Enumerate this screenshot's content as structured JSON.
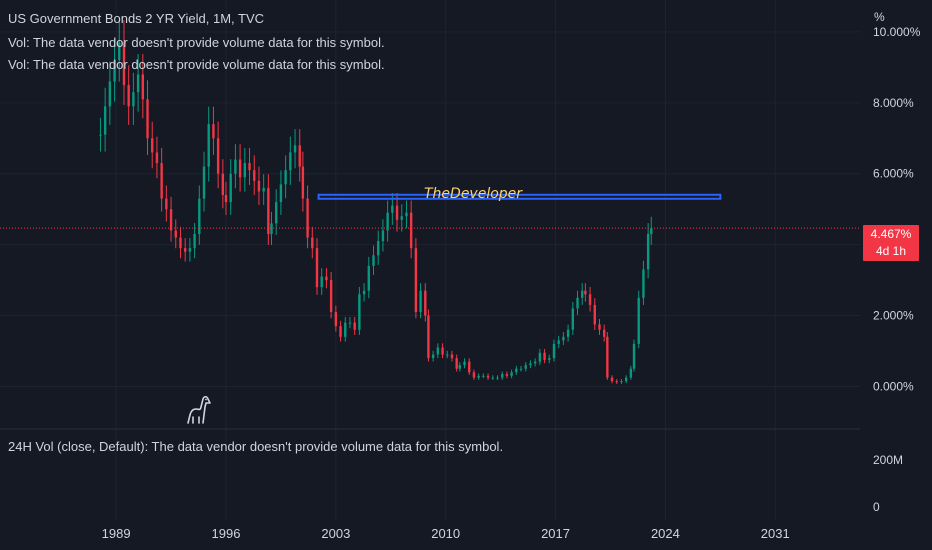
{
  "header": {
    "title": "US Government Bonds 2 YR Yield, 1M, TVC",
    "vol_line_1": "Vol: The data vendor doesn't provide volume data for this symbol.",
    "vol_line_2": "Vol: The data vendor doesn't provide volume data for this symbol."
  },
  "lower_pane": {
    "legend": "24H Vol (close, Default): The data vendor doesn't provide volume data for this symbol.",
    "ticks": [
      "200M",
      "0"
    ]
  },
  "price_axis": {
    "unit": "%",
    "ticks": [
      "10.000%",
      "8.000%",
      "6.000%",
      "2.000%",
      "0.000%"
    ]
  },
  "last_price": {
    "value": "4.467%",
    "countdown": "4d 1h"
  },
  "annotation": {
    "text": "TheDeveloper",
    "level": 5.35,
    "x_start": 2001.9,
    "x_end": 2027.5,
    "color": "#2962ff"
  },
  "colors": {
    "background": "#151924",
    "up": "#089981",
    "down": "#f23645",
    "grid": "#1f2330",
    "text": "#d1d4dc",
    "annotation_text": "#ffd36b"
  },
  "chart_data": {
    "type": "candlestick",
    "x_axis_ticks": [
      "1989",
      "1996",
      "2003",
      "2010",
      "2017",
      "2024",
      "2031"
    ],
    "x_axis_tick_values": [
      1989,
      1996,
      2003,
      2010,
      2017,
      2024,
      2031
    ],
    "xlim": [
      1981.6,
      2036.4
    ],
    "ylim": [
      -1.2,
      10.9
    ],
    "y_tick_values": [
      10,
      8,
      6,
      2,
      0
    ],
    "last_value": 4.467,
    "series_close": [
      [
        1988.0,
        7.1
      ],
      [
        1988.3,
        7.9
      ],
      [
        1988.6,
        8.6
      ],
      [
        1988.9,
        9.2
      ],
      [
        1989.2,
        9.7
      ],
      [
        1989.5,
        8.5
      ],
      [
        1989.8,
        7.9
      ],
      [
        1990.1,
        8.3
      ],
      [
        1990.4,
        8.8
      ],
      [
        1990.7,
        8.1
      ],
      [
        1991.0,
        7.0
      ],
      [
        1991.3,
        6.6
      ],
      [
        1991.6,
        6.3
      ],
      [
        1991.9,
        5.3
      ],
      [
        1992.2,
        5.0
      ],
      [
        1992.5,
        4.4
      ],
      [
        1992.8,
        4.2
      ],
      [
        1993.1,
        3.9
      ],
      [
        1993.4,
        3.8
      ],
      [
        1993.7,
        3.9
      ],
      [
        1994.0,
        4.3
      ],
      [
        1994.3,
        5.3
      ],
      [
        1994.6,
        6.2
      ],
      [
        1994.9,
        7.4
      ],
      [
        1995.2,
        7.0
      ],
      [
        1995.5,
        6.0
      ],
      [
        1995.8,
        5.4
      ],
      [
        1996.0,
        5.2
      ],
      [
        1996.3,
        6.0
      ],
      [
        1996.6,
        6.4
      ],
      [
        1996.9,
        5.9
      ],
      [
        1997.2,
        6.3
      ],
      [
        1997.5,
        6.1
      ],
      [
        1997.8,
        5.8
      ],
      [
        1998.1,
        5.5
      ],
      [
        1998.4,
        5.6
      ],
      [
        1998.7,
        4.3
      ],
      [
        1998.9,
        4.6
      ],
      [
        1999.2,
        5.2
      ],
      [
        1999.5,
        5.7
      ],
      [
        1999.8,
        6.1
      ],
      [
        2000.1,
        6.6
      ],
      [
        2000.4,
        6.8
      ],
      [
        2000.7,
        6.2
      ],
      [
        2000.9,
        5.3
      ],
      [
        2001.2,
        4.2
      ],
      [
        2001.5,
        3.9
      ],
      [
        2001.8,
        2.8
      ],
      [
        2002.1,
        3.1
      ],
      [
        2002.4,
        3.0
      ],
      [
        2002.7,
        2.1
      ],
      [
        2003.0,
        1.7
      ],
      [
        2003.3,
        1.4
      ],
      [
        2003.6,
        1.8
      ],
      [
        2003.9,
        1.8
      ],
      [
        2004.2,
        1.6
      ],
      [
        2004.5,
        2.6
      ],
      [
        2004.8,
        2.7
      ],
      [
        2005.1,
        3.4
      ],
      [
        2005.4,
        3.7
      ],
      [
        2005.7,
        4.1
      ],
      [
        2006.0,
        4.4
      ],
      [
        2006.3,
        4.9
      ],
      [
        2006.6,
        5.1
      ],
      [
        2006.9,
        4.7
      ],
      [
        2007.2,
        4.8
      ],
      [
        2007.5,
        4.9
      ],
      [
        2007.8,
        3.9
      ],
      [
        2008.1,
        2.1
      ],
      [
        2008.4,
        2.7
      ],
      [
        2008.7,
        2.0
      ],
      [
        2008.9,
        0.8
      ],
      [
        2009.2,
        0.9
      ],
      [
        2009.5,
        1.1
      ],
      [
        2009.8,
        0.9
      ],
      [
        2010.1,
        0.9
      ],
      [
        2010.4,
        0.8
      ],
      [
        2010.7,
        0.5
      ],
      [
        2010.9,
        0.6
      ],
      [
        2011.2,
        0.7
      ],
      [
        2011.5,
        0.4
      ],
      [
        2011.8,
        0.25
      ],
      [
        2012.1,
        0.3
      ],
      [
        2012.4,
        0.3
      ],
      [
        2012.7,
        0.25
      ],
      [
        2013.0,
        0.25
      ],
      [
        2013.3,
        0.25
      ],
      [
        2013.6,
        0.35
      ],
      [
        2013.9,
        0.3
      ],
      [
        2014.2,
        0.4
      ],
      [
        2014.5,
        0.5
      ],
      [
        2014.8,
        0.5
      ],
      [
        2015.1,
        0.6
      ],
      [
        2015.4,
        0.65
      ],
      [
        2015.7,
        0.7
      ],
      [
        2016.0,
        0.95
      ],
      [
        2016.3,
        0.75
      ],
      [
        2016.6,
        0.8
      ],
      [
        2016.9,
        1.2
      ],
      [
        2017.2,
        1.3
      ],
      [
        2017.5,
        1.4
      ],
      [
        2017.8,
        1.6
      ],
      [
        2018.1,
        2.2
      ],
      [
        2018.4,
        2.5
      ],
      [
        2018.7,
        2.7
      ],
      [
        2018.9,
        2.6
      ],
      [
        2019.2,
        2.3
      ],
      [
        2019.5,
        1.75
      ],
      [
        2019.8,
        1.6
      ],
      [
        2020.1,
        1.4
      ],
      [
        2020.3,
        0.25
      ],
      [
        2020.6,
        0.15
      ],
      [
        2020.9,
        0.13
      ],
      [
        2021.2,
        0.15
      ],
      [
        2021.5,
        0.25
      ],
      [
        2021.8,
        0.5
      ],
      [
        2022.0,
        1.2
      ],
      [
        2022.3,
        2.5
      ],
      [
        2022.6,
        3.3
      ],
      [
        2022.9,
        4.3
      ],
      [
        2023.1,
        4.467
      ]
    ]
  }
}
